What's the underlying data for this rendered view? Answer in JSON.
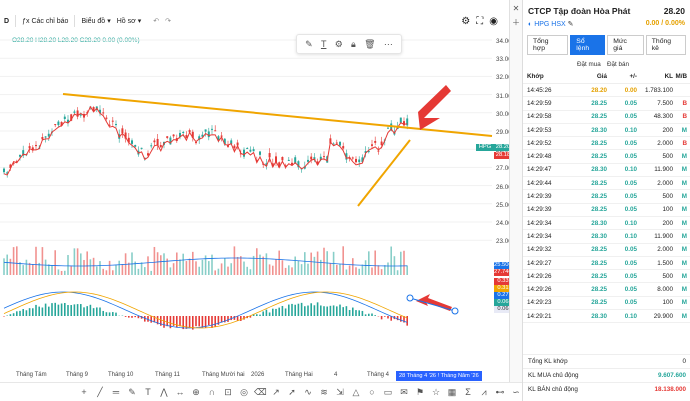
{
  "toolbar": {
    "interval": "D",
    "indicators_label": "Các chỉ báo",
    "chart_label": "Biểu đồ",
    "profile_label": "Hồ sơ",
    "ohlc": {
      "o": "O28.20",
      "h": "H28.20",
      "l": "L28.20",
      "c": "C28.20",
      "chg": "0.00 (0.00%)"
    }
  },
  "price_axis": [
    "34.00",
    "33.00",
    "32.00",
    "31.00",
    "30.00",
    "29.00",
    "28.00",
    "27.00",
    "26.00",
    "25.00",
    "24.00",
    "23.00"
  ],
  "price_tags": {
    "symbol": "HPG",
    "price": "28.20",
    "line": "28.18",
    "vol1": "25.506M",
    "vol2": "27.746M",
    "m1": "0.33",
    "m2": "0.31",
    "m3": "0.27",
    "m4": "0.06",
    "m5": "0.06"
  },
  "time_axis": [
    "Tháng Tám",
    "Tháng 9",
    "Tháng 10",
    "Tháng 11",
    "Tháng Mười hai",
    "2026",
    "Tháng Hai",
    "4",
    "Tháng 4"
  ],
  "time_box": "28 Tháng 4 '26   ! Tháng Năm '26",
  "colors": {
    "up": "#26a69a",
    "down": "#e53935",
    "trend": "#f0a500",
    "accent": "#1a73e8"
  },
  "panel": {
    "title": "CTCP Tập đoàn Hòa Phát",
    "price": "28.20",
    "ticker": "HPG HSX",
    "change": "0.00 / 0.00%",
    "tabs": [
      "Tổng hợp",
      "Sổ lệnh",
      "Mức giá",
      "Thống kê"
    ],
    "sub_headers": [
      "",
      "Đặt mua",
      "Đặt bán"
    ],
    "columns": [
      "Khớp",
      "Giá",
      "+/-",
      "KL",
      "M/B"
    ],
    "rows": [
      {
        "t": "14:45:26",
        "p": "28.20",
        "c": "0.00",
        "v": "1.783.100",
        "s": "",
        "ref": true
      },
      {
        "t": "14:29:59",
        "p": "28.25",
        "c": "0.05",
        "v": "7.500",
        "s": "B"
      },
      {
        "t": "14:29:58",
        "p": "28.25",
        "c": "0.05",
        "v": "48.300",
        "s": "B"
      },
      {
        "t": "14:29:53",
        "p": "28.30",
        "c": "0.10",
        "v": "200",
        "s": "M"
      },
      {
        "t": "14:29:52",
        "p": "28.25",
        "c": "0.05",
        "v": "2.000",
        "s": "B"
      },
      {
        "t": "14:29:48",
        "p": "28.25",
        "c": "0.05",
        "v": "500",
        "s": "M"
      },
      {
        "t": "14:29:47",
        "p": "28.30",
        "c": "0.10",
        "v": "11.900",
        "s": "M"
      },
      {
        "t": "14:29:44",
        "p": "28.25",
        "c": "0.05",
        "v": "2.000",
        "s": "M"
      },
      {
        "t": "14:29:39",
        "p": "28.25",
        "c": "0.05",
        "v": "500",
        "s": "M"
      },
      {
        "t": "14:29:39",
        "p": "28.25",
        "c": "0.05",
        "v": "100",
        "s": "M"
      },
      {
        "t": "14:29:34",
        "p": "28.30",
        "c": "0.10",
        "v": "200",
        "s": "M"
      },
      {
        "t": "14:29:34",
        "p": "28.30",
        "c": "0.10",
        "v": "11.900",
        "s": "M"
      },
      {
        "t": "14:29:32",
        "p": "28.25",
        "c": "0.05",
        "v": "2.000",
        "s": "M"
      },
      {
        "t": "14:29:27",
        "p": "28.25",
        "c": "0.05",
        "v": "1.500",
        "s": "M"
      },
      {
        "t": "14:29:26",
        "p": "28.25",
        "c": "0.05",
        "v": "500",
        "s": "M"
      },
      {
        "t": "14:29:26",
        "p": "28.25",
        "c": "0.05",
        "v": "8.000",
        "s": "M"
      },
      {
        "t": "14:29:23",
        "p": "28.25",
        "c": "0.05",
        "v": "100",
        "s": "M"
      },
      {
        "t": "14:29:21",
        "p": "28.30",
        "c": "0.10",
        "v": "29.900",
        "s": "M"
      }
    ],
    "summary": [
      {
        "label": "Tổng KL khớp",
        "value": "0",
        "cls": ""
      },
      {
        "label": "KL MUA chủ động",
        "value": "9.607.600",
        "cls": "g"
      },
      {
        "label": "KL BÁN chủ động",
        "value": "18.138.000",
        "cls": "r"
      }
    ]
  }
}
